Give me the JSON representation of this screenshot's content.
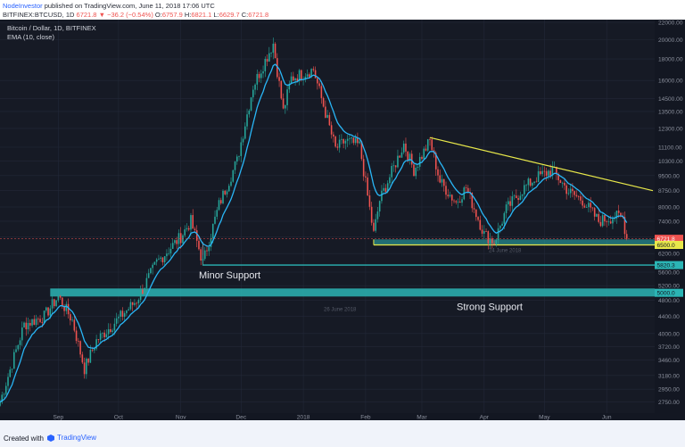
{
  "header": {
    "publisher": "NodeInvestor",
    "published_text": "published on TradingView.com, June 11, 2018 17:06 UTC",
    "symbol": "BITFINEX:BTCUSD, 1D",
    "last": "6721.8",
    "change": "−36.2 (−0.54%)",
    "ohlc_labels": {
      "o": "O:",
      "h": "H:",
      "l": "L:",
      "c": "C:"
    },
    "open": "6757.9",
    "high": "6821.1",
    "low": "6629.7",
    "close": "6721.8"
  },
  "legend": {
    "title": "Bitcoin / Dollar, 1D, BITFINEX",
    "indicator": "EMA (10, close)"
  },
  "footer": {
    "created_with": "Created with",
    "brand": "TradingView"
  },
  "colors": {
    "background": "#161a25",
    "up": "#26a69a",
    "down": "#ef5350",
    "ema": "#29b6f6",
    "trendline": "#e8e84a",
    "support_teal": "#2bb5b5",
    "price_line": "#ef5350"
  },
  "chart_data": {
    "type": "candlestick",
    "title": "Bitcoin / Dollar, 1D, BITFINEX",
    "y_scale": "log",
    "ylim": [
      2600,
      22000
    ],
    "y_ticks": [
      22000,
      20000,
      18000,
      16000,
      14500,
      13500,
      12300,
      11100,
      10300,
      9500,
      8750,
      8000,
      7400,
      6800,
      6200,
      5600,
      5200,
      4800,
      4400,
      4000,
      3720,
      3460,
      3180,
      2950,
      2750
    ],
    "x_ticks": [
      "Sep",
      "Oct",
      "Nov",
      "Dec",
      "2018",
      "Feb",
      "Mar",
      "Apr",
      "May",
      "Jun"
    ],
    "x_range": [
      "2017-08-03",
      "2018-06-24"
    ],
    "price_label": "6721.8",
    "support_zones": [
      {
        "label": "Strong Support",
        "price_label": "5000.0",
        "low": 4900,
        "high": 5120,
        "date_label": "26 June 2018"
      },
      {
        "label": "Minor Support",
        "price_label": "5820.3",
        "level": 5820,
        "start": "2017-11-12"
      },
      {
        "label": "",
        "price_label": "6500.0",
        "low": 6500,
        "high": 6700,
        "start": "2018-02-05",
        "date_label": "24 June 2018"
      }
    ],
    "trendline": {
      "start": {
        "date": "2018-03-05",
        "price": 11700
      },
      "end": {
        "date": "2018-06-24",
        "price": 8750
      }
    },
    "indicator": "EMA (10, close)",
    "anchors": [
      [
        "2017-08-03",
        2750
      ],
      [
        "2017-08-15",
        4200
      ],
      [
        "2017-08-25",
        4400
      ],
      [
        "2017-09-01",
        4900
      ],
      [
        "2017-09-08",
        4300
      ],
      [
        "2017-09-14",
        3300
      ],
      [
        "2017-09-20",
        3850
      ],
      [
        "2017-09-28",
        4200
      ],
      [
        "2017-10-10",
        4800
      ],
      [
        "2017-10-20",
        5900
      ],
      [
        "2017-11-01",
        6800
      ],
      [
        "2017-11-06",
        7400
      ],
      [
        "2017-11-12",
        5900
      ],
      [
        "2017-11-20",
        8100
      ],
      [
        "2017-11-29",
        10300
      ],
      [
        "2017-12-07",
        15500
      ],
      [
        "2017-12-17",
        19600
      ],
      [
        "2017-12-22",
        13500
      ],
      [
        "2017-12-26",
        16200
      ],
      [
        "2018-01-06",
        17000
      ],
      [
        "2018-01-10",
        14500
      ],
      [
        "2018-01-17",
        11000
      ],
      [
        "2018-01-22",
        11500
      ],
      [
        "2018-01-29",
        11200
      ],
      [
        "2018-02-05",
        6900
      ],
      [
        "2018-02-08",
        8300
      ],
      [
        "2018-02-20",
        11300
      ],
      [
        "2018-02-25",
        9800
      ],
      [
        "2018-03-05",
        11500
      ],
      [
        "2018-03-10",
        9200
      ],
      [
        "2018-03-18",
        8200
      ],
      [
        "2018-03-23",
        8900
      ],
      [
        "2018-04-01",
        6900
      ],
      [
        "2018-04-06",
        6600
      ],
      [
        "2018-04-12",
        7900
      ],
      [
        "2018-04-20",
        8800
      ],
      [
        "2018-04-27",
        9400
      ],
      [
        "2018-05-05",
        9800
      ],
      [
        "2018-05-13",
        8700
      ],
      [
        "2018-05-20",
        8300
      ],
      [
        "2018-05-28",
        7400
      ],
      [
        "2018-06-05",
        7600
      ],
      [
        "2018-06-09",
        7550
      ],
      [
        "2018-06-11",
        6722
      ]
    ]
  }
}
